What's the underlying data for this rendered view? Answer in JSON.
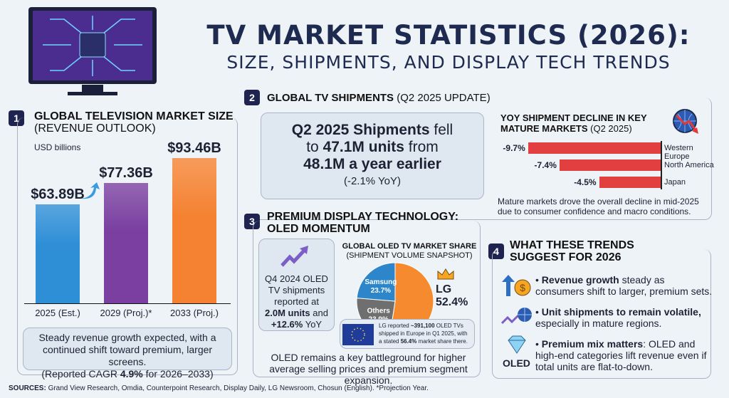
{
  "header": {
    "title_line1": "TV MARKET STATISTICS (2026):",
    "title_line2": "SIZE, SHIPMENTS, AND DISPLAY TECH TRENDS"
  },
  "section1": {
    "number": "1",
    "title": "GLOBAL TELEVISION MARKET SIZE",
    "subtitle": "(REVENUE OUTLOOK)",
    "unit": "USD billions",
    "note_line1": "Steady revenue growth expected, with a",
    "note_line2": "continued shift toward premium, larger screens.",
    "note_pre": "(Reported CAGR ",
    "note_bold": "4.9%",
    "note_post": " for 2026–2033)"
  },
  "section2": {
    "number": "2",
    "title": "GLOBAL TV SHIPMENTS",
    "title_note": "(Q2 2025 UPDATE)",
    "callout": {
      "b1": "Q2 2025 Shipments",
      "t1": " fell",
      "t2": "to ",
      "b2": "47.1M units",
      "t3": " from",
      "b3": "48.1M a year earlier",
      "t4": "(-2.1% YoY)"
    },
    "decline_title": "YOY SHIPMENT DECLINE IN KEY",
    "decline_title2": "MATURE MARKETS",
    "decline_title_note": " (Q2 2025)",
    "decline_note": "Mature markets drove the overall decline in mid-2025 due to consumer confidence and macro conditions.",
    "icon": "globe-down-arrow-icon"
  },
  "section3": {
    "number": "3",
    "title_line1": "PREMIUM DISPLAY TECHNOLOGY:",
    "title_line2": "OLED MOMENTUM",
    "stat": {
      "t1": "Q4 2024 OLED",
      "t2": "TV shipments",
      "t3": "reported at",
      "b1": "2.0M units",
      "t4": " and",
      "b2": "+12.6%",
      "t5": " YoY"
    },
    "pie_title": "GLOBAL OLED TV MARKET SHARE",
    "pie_subtitle": "(SHIPMENT VOLUME SNAPSHOT)",
    "eu_note": {
      "t1": "LG reported ",
      "b1": "~391,100",
      "t2": " OLED TVs shipped in Europe in Q1 2025, with a stated ",
      "b2": "56.4%",
      "t3": " market share there."
    },
    "footer": "OLED remains a key battleground for higher average selling prices and premium segment expansion."
  },
  "section4": {
    "number": "4",
    "title_line1": "WHAT THESE TRENDS",
    "title_line2": "SUGGEST FOR 2026",
    "items": [
      {
        "bold": "Revenue growth",
        "text": " steady as consumers shift to larger, premium sets.",
        "icon": "arrow-up-dollar-icon"
      },
      {
        "bold": "Unit shipments to remain volatile,",
        "text": " especially in mature regions.",
        "icon": "line-globe-icon"
      },
      {
        "bold": "Premium mix matters",
        "text": ": OLED and high-end categories lift revenue even if total units are flat-to-down.",
        "icon": "diamond-icon",
        "icon_label": "OLED"
      }
    ]
  },
  "sources": {
    "label": "SOURCES:",
    "text": " Grand View Research, Omdia, Counterpoint Research, Display Daily, LG Newsroom, Chosun (English). *Projection Year."
  },
  "chart_data": [
    {
      "type": "bar",
      "title": "GLOBAL TELEVISION MARKET SIZE (REVENUE OUTLOOK)",
      "ylabel": "USD billions",
      "categories": [
        "2025 (Est.)",
        "2029 (Proj.)*",
        "2033 (Proj.)"
      ],
      "values": [
        63.89,
        77.36,
        93.46
      ],
      "labels": [
        "$63.89B",
        "$77.36B",
        "$93.46B"
      ],
      "colors": [
        "#2f8fd6",
        "#7a3fa0",
        "#f48232"
      ],
      "ylim": [
        0,
        100
      ]
    },
    {
      "type": "bar",
      "orientation": "horizontal",
      "categories": [
        "Western Europe",
        "North America",
        "Japan"
      ],
      "values": [
        -9.7,
        -7.4,
        -4.5
      ],
      "labels": [
        "-9.7%",
        "-7.4%",
        "-4.5%"
      ],
      "color": "#e24040"
    },
    {
      "type": "pie",
      "categories": [
        "LG",
        "Others",
        "Samsung"
      ],
      "values": [
        52.4,
        23.9,
        23.7
      ],
      "labels": [
        "52.4%",
        "23.9%",
        "23.7%"
      ],
      "colors": [
        "#f68a2e",
        "#6f6f6f",
        "#2c86c9"
      ]
    }
  ]
}
